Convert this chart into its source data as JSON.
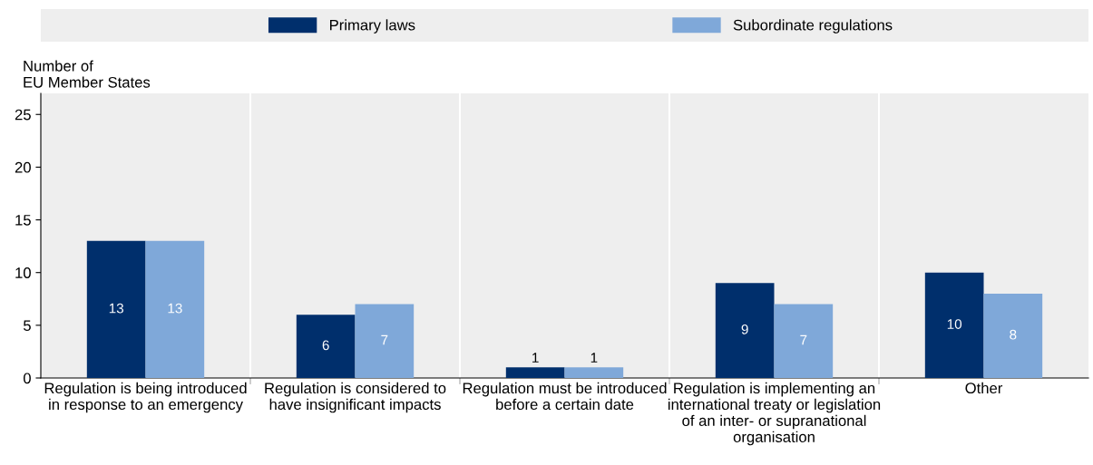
{
  "chart_data": {
    "type": "bar",
    "ylabel": "Number of\nEU Member States",
    "categories": [
      "Regulation is being introduced\nin response to an emergency",
      "Regulation is considered to\nhave insignificant impacts",
      "Regulation must be introduced\nbefore a certain date",
      "Regulation is implementing an\ninternational treaty or legislation\nof an inter- or supranational\norganisation",
      "Other"
    ],
    "series": [
      {
        "name": "Primary laws",
        "color": "#002f6c",
        "values": [
          13,
          6,
          1,
          9,
          10
        ]
      },
      {
        "name": "Subordinate regulations",
        "color": "#7fa8d9",
        "values": [
          13,
          7,
          1,
          7,
          8
        ]
      }
    ],
    "ylim": [
      0,
      27
    ],
    "yticks": [
      0,
      5,
      10,
      15,
      20,
      25
    ],
    "data_labels": true,
    "legend": "top",
    "grid": false
  }
}
